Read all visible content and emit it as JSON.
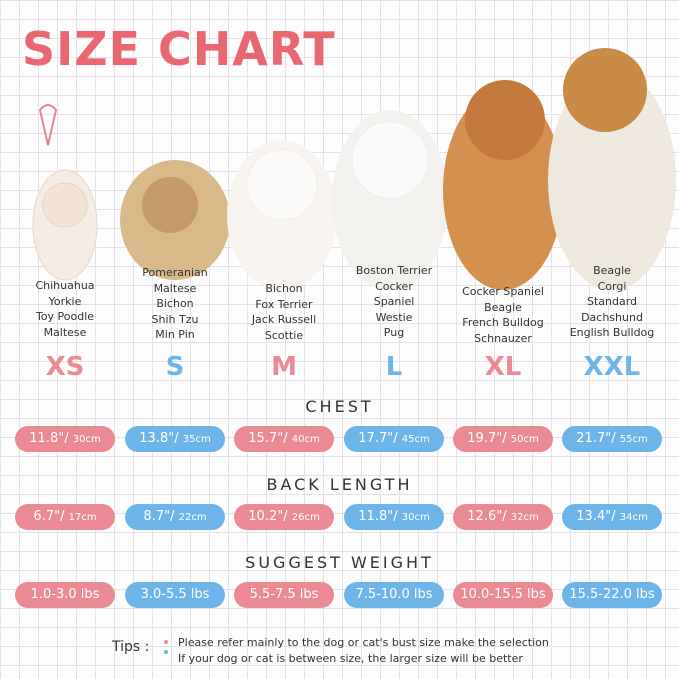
{
  "header": {
    "title": "SIZE CHART"
  },
  "sizes": [
    {
      "label": "XS",
      "breeds": [
        "Chihuahua",
        "Yorkie",
        "Toy Poodle",
        "Maltese"
      ],
      "chest": {
        "in": "11.8\"/",
        "cm": "30cm"
      },
      "back": {
        "in": "6.7\"/",
        "cm": "17cm"
      },
      "weight": "1.0-3.0 lbs"
    },
    {
      "label": "S",
      "breeds": [
        "Pomeranian",
        "Maltese",
        "Bichon",
        "Shih Tzu",
        "Min Pin"
      ],
      "chest": {
        "in": "13.8\"/",
        "cm": "35cm"
      },
      "back": {
        "in": "8.7\"/",
        "cm": "22cm"
      },
      "weight": "3.0-5.5 lbs"
    },
    {
      "label": "M",
      "breeds": [
        "Bichon",
        "Fox Terrier",
        "Jack Russell",
        "Scottie"
      ],
      "chest": {
        "in": "15.7\"/",
        "cm": "40cm"
      },
      "back": {
        "in": "10.2\"/",
        "cm": "26cm"
      },
      "weight": "5.5-7.5 lbs"
    },
    {
      "label": "L",
      "breeds": [
        "Boston Terrier",
        "Cocker",
        "Spaniel",
        "Westie",
        "Pug"
      ],
      "chest": {
        "in": "17.7\"/",
        "cm": "45cm"
      },
      "back": {
        "in": "11.8\"/",
        "cm": "30cm"
      },
      "weight": "7.5-10.0 lbs"
    },
    {
      "label": "XL",
      "breeds": [
        "Cocker Spaniel",
        "Beagle",
        "French Bulldog",
        "Schnauzer"
      ],
      "chest": {
        "in": "19.7\"/",
        "cm": "50cm"
      },
      "back": {
        "in": "12.6\"/",
        "cm": "32cm"
      },
      "weight": "10.0-15.5 lbs"
    },
    {
      "label": "XXL",
      "breeds": [
        "Beagle",
        "Corgi",
        "Standard",
        "Dachshund",
        "English Bulldog"
      ],
      "chest": {
        "in": "21.7\"/",
        "cm": "55cm"
      },
      "back": {
        "in": "13.4\"/",
        "cm": "34cm"
      },
      "weight": "15.5-22.0 lbs"
    }
  ],
  "sections": {
    "chest": "CHEST",
    "back": "BACK LENGTH",
    "weight": "SUGGEST WEIGHT"
  },
  "tips": {
    "label": "Tips :",
    "lines": [
      "Please refer mainly to the dog or cat's bust size make the selection",
      "If your dog or cat is between size, the larger size will be better"
    ]
  }
}
